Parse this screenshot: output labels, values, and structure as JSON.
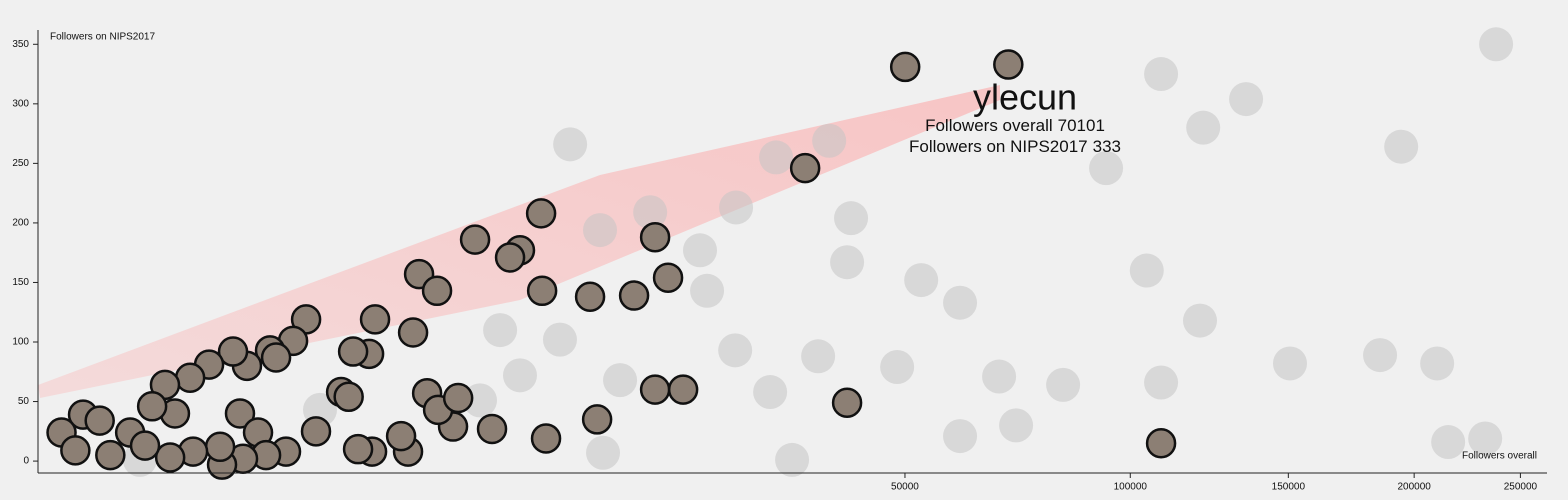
{
  "chart_data": {
    "type": "scatter",
    "x_label": "Followers overall",
    "y_label": "Followers on NIPS2017",
    "x_scale": "pow",
    "x_exponent": 0.3333,
    "xlim": [
      0,
      263700
    ],
    "xticks": [
      50000,
      100000,
      150000,
      200000,
      250000
    ],
    "ylim": [
      -10,
      362
    ],
    "yticks": [
      0,
      50,
      100,
      150,
      200,
      250,
      300,
      350
    ],
    "series": [
      {
        "color": "#c4c4c4",
        "stroke": "none",
        "opacity": 0.55,
        "x": [
          11560,
          108700,
          135300,
          121400,
          237900,
          194400,
          93500,
          38000,
          30850,
          26100,
          41240,
          40640,
          52860,
          60150,
          104600,
          120400,
          150600,
          185500,
          210200,
          108700,
          82660,
          68120,
          215200,
          232600,
          60150,
          71800,
          32900,
          13840,
          26000,
          36430,
          48660,
          30110,
          22980,
          17600,
          13620,
          22260,
          7570,
          10910,
          15130,
          8590,
          6625,
          1720,
          81
        ],
        "values": [
          266,
          325,
          304,
          280,
          350,
          264,
          246,
          269,
          255,
          213,
          204,
          167,
          152,
          133,
          160,
          118,
          82,
          89,
          82,
          66,
          64,
          71,
          16,
          19,
          21,
          30,
          1,
          7,
          93,
          88,
          79,
          58,
          143,
          209,
          194,
          177,
          110,
          102,
          68,
          72,
          51,
          43,
          1
        ]
      },
      {
        "color": "#8c7f74",
        "stroke": "#111111",
        "opacity": 1,
        "x": [
          50040,
          70101,
          34640,
          18030,
          9770,
          6405,
          8590,
          8070,
          19190,
          9830,
          12910,
          16250,
          4245,
          4875,
          2937,
          4048,
          1478,
          40640,
          108700,
          18030,
          20600,
          13410,
          10060,
          7180,
          5485,
          4520,
          4913,
          5690,
          2784,
          2400,
          2136,
          2300,
          1648,
          3887,
          3672,
          2860,
          2515,
          1273,
          958,
          1035,
          700,
          569,
          632,
          817,
          1170,
          910,
          661,
          478,
          463,
          286,
          177,
          384,
          270,
          157,
          197,
          114,
          7,
          18,
          1,
          60,
          94,
          29,
          4
        ],
        "values": [
          331,
          333,
          246,
          188,
          208,
          186,
          177,
          171,
          154,
          143,
          138,
          139,
          157,
          143,
          119,
          108,
          119,
          49,
          15,
          60,
          60,
          35,
          19,
          27,
          29,
          57,
          43,
          53,
          90,
          92,
          58,
          54,
          25,
          8,
          21,
          8,
          10,
          101,
          93,
          87,
          80,
          92,
          40,
          24,
          8,
          5,
          2,
          -3,
          12,
          8,
          3,
          81,
          70,
          64,
          40,
          46,
          39,
          34,
          24,
          24,
          13,
          5,
          9
        ]
      }
    ],
    "annotation": {
      "name": "ylecun",
      "x": 70101,
      "y": 333
    }
  }
}
